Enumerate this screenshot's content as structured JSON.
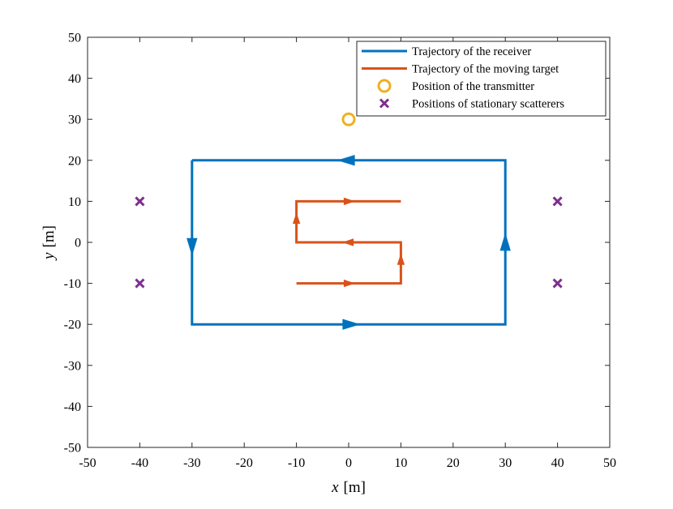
{
  "chart_data": {
    "type": "line",
    "xlabel": {
      "symbol": "x",
      "unit": "[m]"
    },
    "ylabel": {
      "symbol": "y",
      "unit": "[m]"
    },
    "xlim": [
      -50,
      50
    ],
    "ylim": [
      -50,
      50
    ],
    "xticks": [
      -50,
      -40,
      -30,
      -20,
      -10,
      0,
      10,
      20,
      30,
      40,
      50
    ],
    "yticks": [
      -50,
      -40,
      -30,
      -20,
      -10,
      0,
      10,
      20,
      30,
      40,
      50
    ],
    "xtick_labels": [
      "-50",
      "-40",
      "-30",
      "-20",
      "-10",
      "0",
      "10",
      "20",
      "30",
      "40",
      "50"
    ],
    "ytick_labels": [
      "-50",
      "-40",
      "-30",
      "-20",
      "-10",
      "0",
      "10",
      "20",
      "30",
      "40",
      "50"
    ],
    "grid": false,
    "legend_position": "top-right",
    "series": [
      {
        "name": "Trajectory of the receiver",
        "kind": "line",
        "color": "#0072BD",
        "points": [
          [
            -30,
            20
          ],
          [
            -30,
            -20
          ],
          [
            30,
            -20
          ],
          [
            30,
            20
          ],
          [
            -30,
            20
          ]
        ],
        "arrows": [
          {
            "from": [
              -30,
              1
            ],
            "to": [
              -30,
              -3
            ]
          },
          {
            "from": [
              -3,
              -20
            ],
            "to": [
              2,
              -20
            ]
          },
          {
            "from": [
              30,
              -2
            ],
            "to": [
              30,
              2
            ]
          },
          {
            "from": [
              3,
              20
            ],
            "to": [
              -2,
              20
            ]
          }
        ]
      },
      {
        "name": "Trajectory of the moving target",
        "kind": "line",
        "color": "#D95319",
        "points": [
          [
            -10,
            -10
          ],
          [
            10,
            -10
          ],
          [
            10,
            0
          ],
          [
            -10,
            0
          ],
          [
            -10,
            10
          ],
          [
            10,
            10
          ]
        ],
        "arrows": [
          {
            "from": [
              -2,
              -10
            ],
            "to": [
              1,
              -10
            ]
          },
          {
            "from": [
              10,
              -6
            ],
            "to": [
              10,
              -3
            ]
          },
          {
            "from": [
              2,
              0
            ],
            "to": [
              -1,
              0
            ]
          },
          {
            "from": [
              -10,
              4
            ],
            "to": [
              -10,
              7
            ]
          },
          {
            "from": [
              -2,
              10
            ],
            "to": [
              1,
              10
            ]
          }
        ]
      },
      {
        "name": "Position of the transmitter",
        "kind": "circle",
        "color": "#EDB120",
        "points": [
          [
            0,
            30
          ]
        ]
      },
      {
        "name": "Positions of stationary scatterers",
        "kind": "cross",
        "color": "#7E2F8E",
        "points": [
          [
            -40,
            10
          ],
          [
            -40,
            -10
          ],
          [
            40,
            10
          ],
          [
            40,
            -10
          ]
        ]
      }
    ]
  }
}
